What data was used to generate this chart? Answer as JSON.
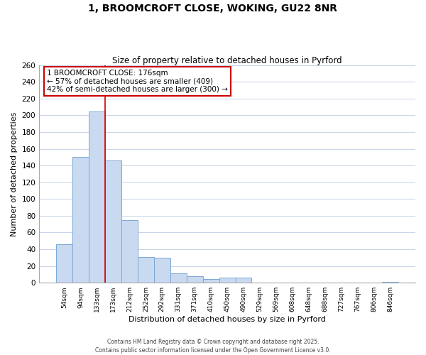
{
  "title": "1, BROOMCROFT CLOSE, WOKING, GU22 8NR",
  "subtitle": "Size of property relative to detached houses in Pyrford",
  "bar_labels": [
    "54sqm",
    "94sqm",
    "133sqm",
    "173sqm",
    "212sqm",
    "252sqm",
    "292sqm",
    "331sqm",
    "371sqm",
    "410sqm",
    "450sqm",
    "490sqm",
    "529sqm",
    "569sqm",
    "608sqm",
    "648sqm",
    "688sqm",
    "727sqm",
    "767sqm",
    "806sqm",
    "846sqm"
  ],
  "bar_values": [
    46,
    150,
    205,
    146,
    75,
    31,
    30,
    11,
    8,
    4,
    6,
    6,
    0,
    0,
    0,
    0,
    0,
    0,
    0,
    0,
    1
  ],
  "bar_color": "#c9d9f0",
  "bar_edge_color": "#7ba8d4",
  "xlabel": "Distribution of detached houses by size in Pyrford",
  "ylabel": "Number of detached properties",
  "ylim": [
    0,
    260
  ],
  "yticks": [
    0,
    20,
    40,
    60,
    80,
    100,
    120,
    140,
    160,
    180,
    200,
    220,
    240,
    260
  ],
  "vline_color": "#cc0000",
  "annotation_title": "1 BROOMCROFT CLOSE: 176sqm",
  "annotation_line1": "← 57% of detached houses are smaller (409)",
  "annotation_line2": "42% of semi-detached houses are larger (300) →",
  "annotation_box_color": "#ffffff",
  "annotation_box_edge_color": "#cc0000",
  "footer_line1": "Contains HM Land Registry data © Crown copyright and database right 2025.",
  "footer_line2": "Contains public sector information licensed under the Open Government Licence v3.0.",
  "background_color": "#ffffff",
  "grid_color": "#c8d4e8"
}
